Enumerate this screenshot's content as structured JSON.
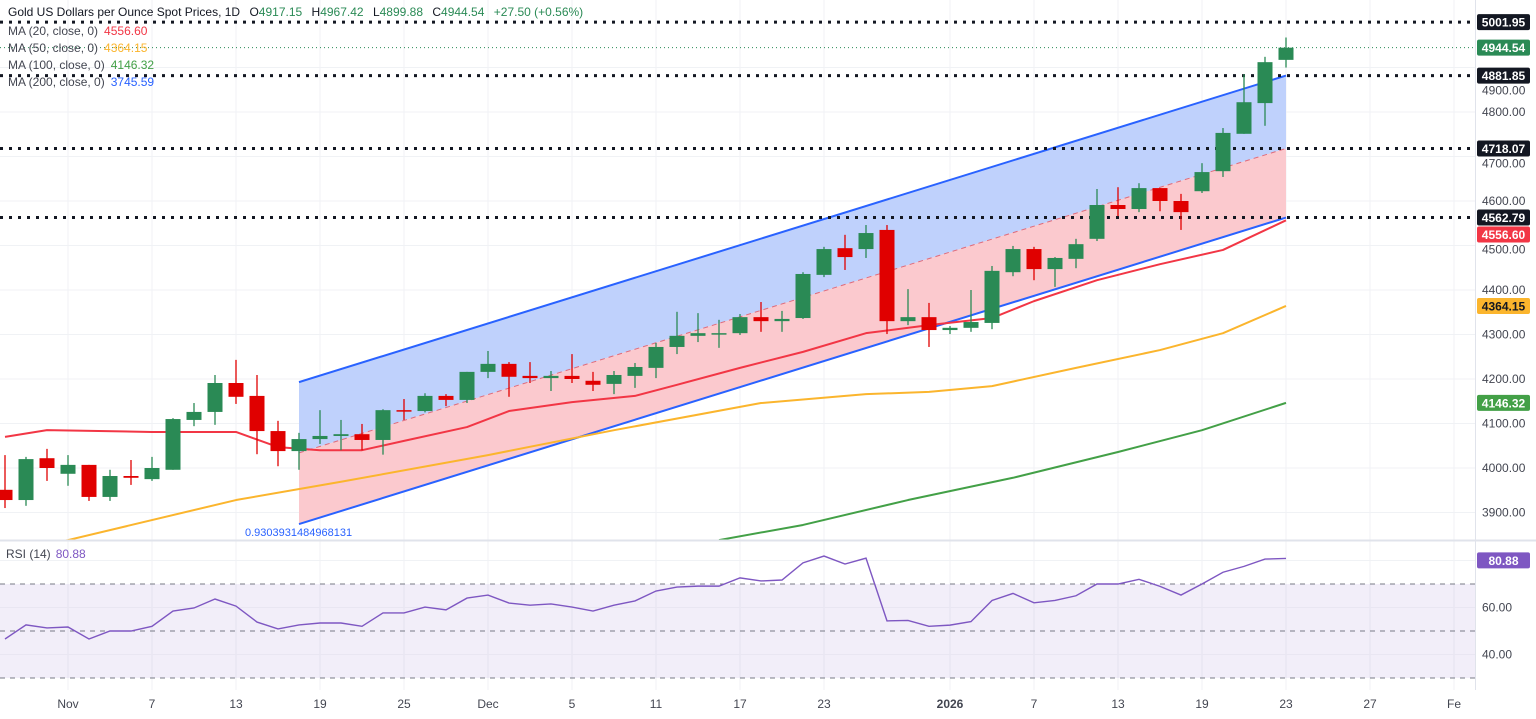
{
  "header": {
    "title": "Gold US Dollars per Ounce Spot Prices, 1D",
    "open_label": "O",
    "open": "4917.15",
    "high_label": "H",
    "high": "4967.42",
    "low_label": "L",
    "low": "4899.88",
    "close_label": "C",
    "close": "4944.54",
    "change": "+27.50 (+0.56%)"
  },
  "indicators": [
    {
      "label": "MA (20, close, 0)",
      "value": "4556.60",
      "color": "#f23645"
    },
    {
      "label": "MA (50, close, 0)",
      "value": "4364.15",
      "color": "#fbb52d"
    },
    {
      "label": "MA (100, close, 0)",
      "value": "4146.32",
      "color": "#43a047"
    },
    {
      "label": "MA (200, close, 0)",
      "value": "3745.59",
      "color": "#2962ff"
    }
  ],
  "rsi": {
    "label": "RSI (14)",
    "value": "80.88",
    "color": "#7e57c2",
    "levels": [
      70,
      50,
      30
    ],
    "ticks": [
      {
        "v": 60,
        "label": "60.00"
      },
      {
        "v": 40,
        "label": "40.00"
      }
    ]
  },
  "levels": [
    {
      "price": 5001.95,
      "label": "5001.95"
    },
    {
      "price": 4881.85,
      "label": "4881.85"
    },
    {
      "price": 4718.07,
      "label": "4718.07"
    },
    {
      "price": 4562.79,
      "label": "4562.79"
    }
  ],
  "channel_label": "0.9303931484968131",
  "colors": {
    "up": "#2a8a55",
    "down": "#e00000",
    "channel_upper_fill": "#bccffc",
    "channel_lower_fill": "#fbc6cb",
    "channel_line": "#2962ff",
    "level": "#131722"
  },
  "chart_data": {
    "type": "candlestick",
    "title": "Gold US Dollars per Ounce Spot Prices, 1D",
    "ylim": [
      3838,
      5050
    ],
    "price_ticks": [
      {
        "v": 3900,
        "label": "3900.00"
      },
      {
        "v": 4000,
        "label": "4000.00"
      },
      {
        "v": 4100,
        "label": "4100.00"
      },
      {
        "v": 4200,
        "label": "4200.00"
      },
      {
        "v": 4300,
        "label": "4300.00"
      },
      {
        "v": 4400,
        "label": "4400.00"
      },
      {
        "v": 4500,
        "label": "4500.00"
      },
      {
        "v": 4600,
        "label": "4600.00"
      },
      {
        "v": 4700,
        "label": "4700.00"
      },
      {
        "v": 4800,
        "label": "4800.00"
      },
      {
        "v": 4900,
        "label": "4900.00"
      }
    ],
    "x_ticks": [
      {
        "i": 3,
        "label": "Nov"
      },
      {
        "i": 7,
        "label": "7"
      },
      {
        "i": 11,
        "label": "13"
      },
      {
        "i": 15,
        "label": "19"
      },
      {
        "i": 19,
        "label": "25"
      },
      {
        "i": 23,
        "label": "Dec"
      },
      {
        "i": 27,
        "label": "5"
      },
      {
        "i": 31,
        "label": "11"
      },
      {
        "i": 35,
        "label": "17"
      },
      {
        "i": 39,
        "label": "23"
      },
      {
        "i": 45,
        "label": "2026"
      },
      {
        "i": 49,
        "label": "7"
      },
      {
        "i": 53,
        "label": "13"
      },
      {
        "i": 57,
        "label": "19"
      },
      {
        "i": 61,
        "label": "23"
      },
      {
        "i": 65,
        "label": "27"
      },
      {
        "i": 69,
        "label": "Fe"
      }
    ],
    "candles_ohlc": [
      [
        3951,
        4029,
        3910,
        3928
      ],
      [
        3928,
        4025,
        3915,
        4020
      ],
      [
        4022,
        4043,
        3971,
        4000
      ],
      [
        3987,
        4029,
        3960,
        4007
      ],
      [
        4007,
        4007,
        3926,
        3935
      ],
      [
        3935,
        3996,
        3926,
        3982
      ],
      [
        3982,
        4018,
        3962,
        3978
      ],
      [
        3975,
        4025,
        3971,
        4000
      ],
      [
        3996,
        4112,
        3996,
        4110
      ],
      [
        4108,
        4146,
        4094,
        4126
      ],
      [
        4126,
        4209,
        4097,
        4191
      ],
      [
        4191,
        4243,
        4144,
        4160
      ],
      [
        4162,
        4209,
        4031,
        4083
      ],
      [
        4083,
        4106,
        4004,
        4038
      ],
      [
        4038,
        4079,
        3996,
        4065
      ],
      [
        4065,
        4130,
        4054,
        4072
      ],
      [
        4072,
        4108,
        4040,
        4076
      ],
      [
        4076,
        4099,
        4040,
        4063
      ],
      [
        4063,
        4132,
        4030,
        4130
      ],
      [
        4130,
        4155,
        4108,
        4128
      ],
      [
        4128,
        4168,
        4125,
        4162
      ],
      [
        4162,
        4166,
        4139,
        4153
      ],
      [
        4153,
        4216,
        4146,
        4216
      ],
      [
        4216,
        4263,
        4202,
        4234
      ],
      [
        4234,
        4238,
        4160,
        4205
      ],
      [
        4207,
        4238,
        4191,
        4202
      ],
      [
        4202,
        4218,
        4173,
        4207
      ],
      [
        4207,
        4256,
        4191,
        4200
      ],
      [
        4196,
        4216,
        4173,
        4187
      ],
      [
        4189,
        4218,
        4166,
        4209
      ],
      [
        4207,
        4236,
        4180,
        4227
      ],
      [
        4225,
        4281,
        4202,
        4272
      ],
      [
        4272,
        4351,
        4256,
        4297
      ],
      [
        4297,
        4348,
        4283,
        4303
      ],
      [
        4301,
        4333,
        4270,
        4303
      ],
      [
        4303,
        4346,
        4299,
        4339
      ],
      [
        4339,
        4373,
        4306,
        4330
      ],
      [
        4330,
        4353,
        4306,
        4335
      ],
      [
        4337,
        4440,
        4335,
        4436
      ],
      [
        4434,
        4497,
        4429,
        4492
      ],
      [
        4494,
        4524,
        4445,
        4474
      ],
      [
        4492,
        4546,
        4472,
        4528
      ],
      [
        4535,
        4546,
        4301,
        4330
      ],
      [
        4330,
        4402,
        4321,
        4339
      ],
      [
        4339,
        4371,
        4272,
        4310
      ],
      [
        4310,
        4319,
        4301,
        4315
      ],
      [
        4315,
        4400,
        4306,
        4328
      ],
      [
        4326,
        4454,
        4312,
        4443
      ],
      [
        4440,
        4499,
        4431,
        4492
      ],
      [
        4492,
        4497,
        4422,
        4447
      ],
      [
        4447,
        4474,
        4407,
        4472
      ],
      [
        4470,
        4515,
        4449,
        4503
      ],
      [
        4515,
        4627,
        4510,
        4591
      ],
      [
        4591,
        4631,
        4566,
        4582
      ],
      [
        4582,
        4640,
        4575,
        4629
      ],
      [
        4629,
        4629,
        4577,
        4600
      ],
      [
        4600,
        4616,
        4535,
        4575
      ],
      [
        4622,
        4685,
        4618,
        4665
      ],
      [
        4667,
        4764,
        4654,
        4753
      ],
      [
        4751,
        4885,
        4751,
        4822
      ],
      [
        4820,
        4924,
        4769,
        4912
      ],
      [
        4917.15,
        4967.42,
        4899.88,
        4944.54
      ]
    ],
    "ma20": [
      [
        0,
        4070
      ],
      [
        2,
        4085
      ],
      [
        7,
        4081
      ],
      [
        11,
        4081
      ],
      [
        13,
        4047
      ],
      [
        15,
        4040
      ],
      [
        17,
        4040
      ],
      [
        19,
        4061
      ],
      [
        22,
        4092
      ],
      [
        24,
        4128
      ],
      [
        27,
        4148
      ],
      [
        30,
        4162
      ],
      [
        32,
        4187
      ],
      [
        35,
        4225
      ],
      [
        38,
        4261
      ],
      [
        41,
        4303
      ],
      [
        44,
        4321
      ],
      [
        47,
        4337
      ],
      [
        49,
        4375
      ],
      [
        52,
        4422
      ],
      [
        55,
        4458
      ],
      [
        58,
        4490
      ],
      [
        61,
        4556.6
      ]
    ],
    "ma50": [
      [
        2,
        3830
      ],
      [
        3,
        3838
      ],
      [
        11,
        3928
      ],
      [
        16,
        3969
      ],
      [
        23,
        4029
      ],
      [
        29,
        4085
      ],
      [
        36,
        4146
      ],
      [
        41,
        4166
      ],
      [
        44,
        4171
      ],
      [
        47,
        4184
      ],
      [
        51,
        4225
      ],
      [
        55,
        4265
      ],
      [
        58,
        4303
      ],
      [
        61,
        4364.15
      ]
    ],
    "ma100": [
      [
        34,
        3838
      ],
      [
        38,
        3872
      ],
      [
        43,
        3928
      ],
      [
        48,
        3978
      ],
      [
        53,
        4036
      ],
      [
        57,
        4085
      ],
      [
        61,
        4146.32
      ]
    ],
    "channel": {
      "start_index": 14,
      "end_index": 61,
      "upper": [
        4193,
        4881.85
      ],
      "middle": [
        4034,
        4718.07
      ],
      "lower": [
        3874,
        4562.79
      ]
    },
    "rsi_values": [
      46.6,
      52.6,
      51.3,
      51.7,
      46.6,
      50,
      50,
      52,
      58.5,
      59.8,
      63.6,
      60.6,
      53.8,
      50.9,
      52.6,
      53.4,
      53.4,
      52,
      57.7,
      57.7,
      60.2,
      59,
      64,
      65.3,
      61.9,
      61,
      61.5,
      60.2,
      58.5,
      61,
      62.8,
      67,
      68.7,
      69.1,
      69.1,
      72.6,
      71.3,
      71.7,
      79,
      81.9,
      78.5,
      81,
      54.3,
      54.5,
      52,
      52.5,
      54,
      63,
      66,
      62,
      63,
      65,
      70,
      70,
      72,
      69,
      65.3,
      70,
      75,
      77.5,
      80.6,
      80.88
    ],
    "last_close": 4944.54
  }
}
